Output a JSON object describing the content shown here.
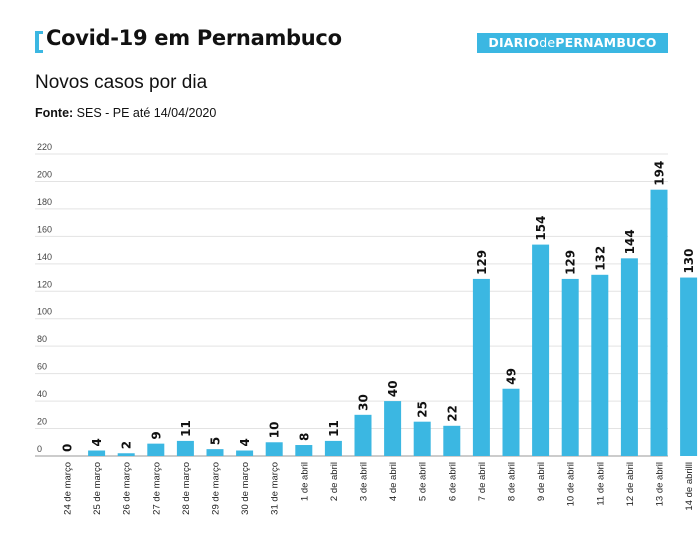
{
  "header": {
    "title": "Covid-19 em Pernambuco",
    "logo": {
      "part1": "DIARIO",
      "part2": "de",
      "part3": "PERNAMBUCO"
    }
  },
  "subtitle": "Novos casos por dia",
  "source": {
    "label": "Fonte:",
    "text": " SES - PE até 14/04/2020"
  },
  "colors": {
    "bar": "#3bb7e2",
    "accent": "#3bb7e2"
  },
  "chart_data": {
    "type": "bar",
    "title": "Novos casos por dia",
    "categories": [
      "24 de março",
      "25 de março",
      "26 de março",
      "27 de março",
      "28 de março",
      "29 de março",
      "30 de março",
      "31 de março",
      "1 de abril",
      "2 de abril",
      "3 de abril",
      "4 de abril",
      "5 de abril",
      "6 de abril",
      "7 de abril",
      "8 de abril",
      "9 de abril",
      "10 de abril",
      "11 de abril",
      "12 de abril",
      "13 de abril",
      "14 de abrilll"
    ],
    "values": [
      0,
      4,
      2,
      9,
      11,
      5,
      4,
      10,
      8,
      11,
      30,
      40,
      25,
      22,
      129,
      49,
      154,
      129,
      132,
      144,
      194,
      130
    ],
    "ylim": [
      0,
      220
    ],
    "yticks": [
      0,
      20,
      40,
      60,
      80,
      100,
      120,
      140,
      160,
      180,
      200,
      220
    ],
    "grid": true
  }
}
